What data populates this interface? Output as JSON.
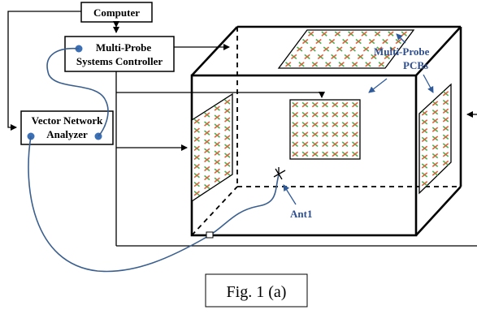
{
  "boxes": {
    "computer": "Computer",
    "controller_line1": "Multi-Probe",
    "controller_line2": "Systems Controller",
    "vna_line1": "Vector Network",
    "vna_line2": "Analyzer"
  },
  "labels": {
    "pcbs_line1": "Multi-Probe",
    "pcbs_line2": "PCBs",
    "antenna": "Ant1"
  },
  "caption": "Fig. 1 (a)",
  "colors": {
    "cable": "#3a5f8f",
    "label_blue": "#2f4f8f",
    "probe_green": "#4caf50",
    "probe_red": "#e0603a",
    "connector_dot": "#3b6fb6"
  }
}
